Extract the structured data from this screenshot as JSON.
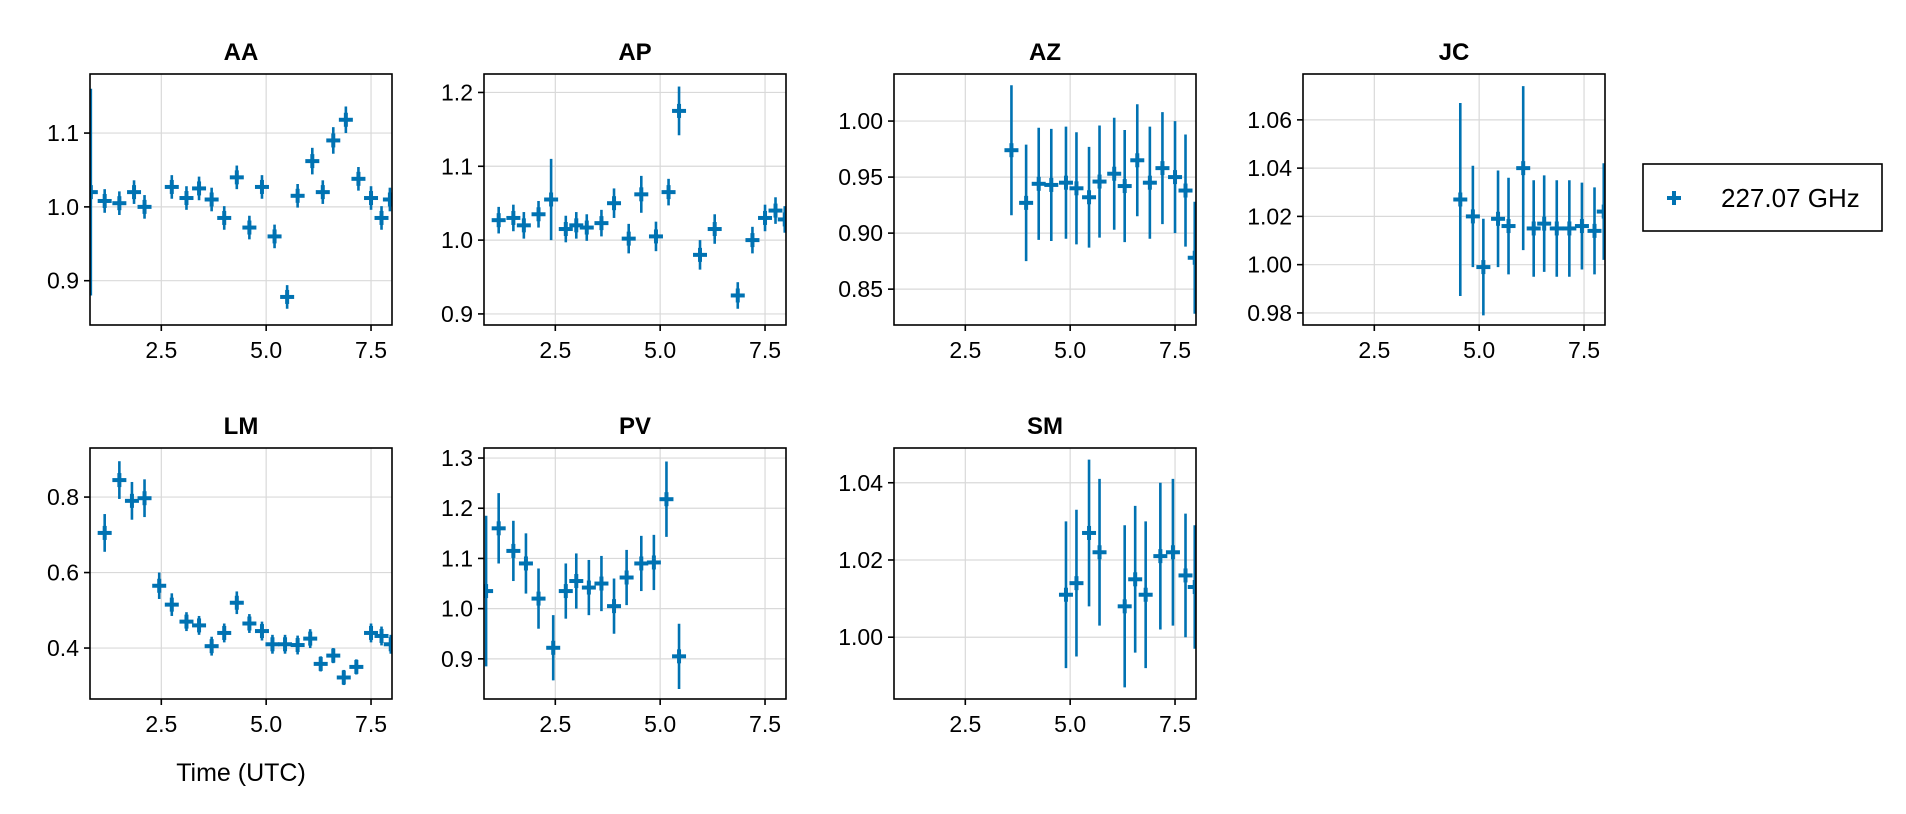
{
  "chart_data": {
    "type": "scatter",
    "layout": "multi-panel grid, 4 columns x 2 rows",
    "series_color": "#0072b2",
    "marker": "plus with vertical error bars",
    "legend": {
      "position": "right",
      "entries": [
        "227.07 GHz"
      ]
    },
    "xlabel": "Time (UTC)",
    "grid": true,
    "panels": [
      {
        "title": "AA",
        "xlim": [
          0.8,
          8.0
        ],
        "ylim": [
          0.84,
          1.18
        ],
        "xticks": [
          "2.5",
          "5.0",
          "7.5"
        ],
        "yticks": [
          "0.9",
          "1.0",
          "1.1"
        ],
        "points": [
          {
            "x": 0.82,
            "y": 1.02,
            "err": 0.14
          },
          {
            "x": 1.15,
            "y": 1.008,
            "err": 0.016
          },
          {
            "x": 1.5,
            "y": 1.005,
            "err": 0.016
          },
          {
            "x": 1.85,
            "y": 1.02,
            "err": 0.016
          },
          {
            "x": 2.1,
            "y": 1.0,
            "err": 0.016
          },
          {
            "x": 2.75,
            "y": 1.027,
            "err": 0.016
          },
          {
            "x": 3.1,
            "y": 1.012,
            "err": 0.016
          },
          {
            "x": 3.4,
            "y": 1.025,
            "err": 0.016
          },
          {
            "x": 3.7,
            "y": 1.01,
            "err": 0.016
          },
          {
            "x": 4.0,
            "y": 0.985,
            "err": 0.016
          },
          {
            "x": 4.3,
            "y": 1.04,
            "err": 0.016
          },
          {
            "x": 4.6,
            "y": 0.972,
            "err": 0.016
          },
          {
            "x": 4.9,
            "y": 1.027,
            "err": 0.016
          },
          {
            "x": 5.2,
            "y": 0.96,
            "err": 0.016
          },
          {
            "x": 5.5,
            "y": 0.878,
            "err": 0.016
          },
          {
            "x": 5.75,
            "y": 1.015,
            "err": 0.016
          },
          {
            "x": 6.1,
            "y": 1.062,
            "err": 0.018
          },
          {
            "x": 6.35,
            "y": 1.02,
            "err": 0.016
          },
          {
            "x": 6.6,
            "y": 1.09,
            "err": 0.018
          },
          {
            "x": 6.9,
            "y": 1.118,
            "err": 0.018
          },
          {
            "x": 7.2,
            "y": 1.038,
            "err": 0.016
          },
          {
            "x": 7.5,
            "y": 1.012,
            "err": 0.016
          },
          {
            "x": 7.75,
            "y": 0.985,
            "err": 0.016
          },
          {
            "x": 7.95,
            "y": 1.01,
            "err": 0.016
          }
        ]
      },
      {
        "title": "AP",
        "xlim": [
          0.8,
          8.0
        ],
        "ylim": [
          0.885,
          1.225
        ],
        "xticks": [
          "2.5",
          "5.0",
          "7.5"
        ],
        "yticks": [
          "0.9",
          "1.0",
          "1.1",
          "1.2"
        ],
        "points": [
          {
            "x": 1.15,
            "y": 1.027,
            "err": 0.018
          },
          {
            "x": 1.5,
            "y": 1.03,
            "err": 0.018
          },
          {
            "x": 1.75,
            "y": 1.02,
            "err": 0.018
          },
          {
            "x": 2.1,
            "y": 1.035,
            "err": 0.018
          },
          {
            "x": 2.4,
            "y": 1.055,
            "err": 0.055
          },
          {
            "x": 2.75,
            "y": 1.015,
            "err": 0.018
          },
          {
            "x": 3.0,
            "y": 1.02,
            "err": 0.018
          },
          {
            "x": 3.25,
            "y": 1.017,
            "err": 0.018
          },
          {
            "x": 3.6,
            "y": 1.023,
            "err": 0.018
          },
          {
            "x": 3.9,
            "y": 1.05,
            "err": 0.02
          },
          {
            "x": 4.25,
            "y": 1.002,
            "err": 0.02
          },
          {
            "x": 4.55,
            "y": 1.062,
            "err": 0.025
          },
          {
            "x": 4.9,
            "y": 1.005,
            "err": 0.02
          },
          {
            "x": 5.2,
            "y": 1.065,
            "err": 0.018
          },
          {
            "x": 5.45,
            "y": 1.175,
            "err": 0.033
          },
          {
            "x": 5.95,
            "y": 0.98,
            "err": 0.02
          },
          {
            "x": 6.3,
            "y": 1.015,
            "err": 0.02
          },
          {
            "x": 6.85,
            "y": 0.925,
            "err": 0.018
          },
          {
            "x": 7.2,
            "y": 1.0,
            "err": 0.018
          },
          {
            "x": 7.5,
            "y": 1.03,
            "err": 0.018
          },
          {
            "x": 7.75,
            "y": 1.04,
            "err": 0.018
          },
          {
            "x": 7.97,
            "y": 1.028,
            "err": 0.018
          }
        ]
      },
      {
        "title": "AZ",
        "xlim": [
          0.8,
          8.0
        ],
        "ylim": [
          0.818,
          1.042
        ],
        "xticks": [
          "2.5",
          "5.0",
          "7.5"
        ],
        "yticks": [
          "0.85",
          "0.90",
          "0.95",
          "1.00"
        ],
        "points": [
          {
            "x": 3.6,
            "y": 0.974,
            "err": 0.058
          },
          {
            "x": 3.95,
            "y": 0.927,
            "err": 0.052
          },
          {
            "x": 4.25,
            "y": 0.944,
            "err": 0.05
          },
          {
            "x": 4.55,
            "y": 0.943,
            "err": 0.05
          },
          {
            "x": 4.9,
            "y": 0.945,
            "err": 0.05
          },
          {
            "x": 5.15,
            "y": 0.94,
            "err": 0.05
          },
          {
            "x": 5.45,
            "y": 0.932,
            "err": 0.045
          },
          {
            "x": 5.7,
            "y": 0.946,
            "err": 0.05
          },
          {
            "x": 6.05,
            "y": 0.953,
            "err": 0.05
          },
          {
            "x": 6.3,
            "y": 0.942,
            "err": 0.05
          },
          {
            "x": 6.6,
            "y": 0.965,
            "err": 0.05
          },
          {
            "x": 6.9,
            "y": 0.945,
            "err": 0.05
          },
          {
            "x": 7.2,
            "y": 0.958,
            "err": 0.05
          },
          {
            "x": 7.5,
            "y": 0.95,
            "err": 0.05
          },
          {
            "x": 7.75,
            "y": 0.938,
            "err": 0.05
          },
          {
            "x": 7.97,
            "y": 0.878,
            "err": 0.05
          }
        ]
      },
      {
        "title": "JC",
        "xlim": [
          0.8,
          8.0
        ],
        "ylim": [
          0.975,
          1.079
        ],
        "xticks": [
          "2.5",
          "5.0",
          "7.5"
        ],
        "yticks": [
          "0.98",
          "1.00",
          "1.02",
          "1.04",
          "1.06"
        ],
        "points": [
          {
            "x": 4.55,
            "y": 1.027,
            "err": 0.04
          },
          {
            "x": 4.85,
            "y": 1.02,
            "err": 0.021
          },
          {
            "x": 5.1,
            "y": 0.999,
            "err": 0.02
          },
          {
            "x": 5.45,
            "y": 1.019,
            "err": 0.02
          },
          {
            "x": 5.7,
            "y": 1.016,
            "err": 0.02
          },
          {
            "x": 6.05,
            "y": 1.04,
            "err": 0.034
          },
          {
            "x": 6.3,
            "y": 1.015,
            "err": 0.02
          },
          {
            "x": 6.55,
            "y": 1.017,
            "err": 0.02
          },
          {
            "x": 6.85,
            "y": 1.015,
            "err": 0.02
          },
          {
            "x": 7.15,
            "y": 1.015,
            "err": 0.02
          },
          {
            "x": 7.45,
            "y": 1.016,
            "err": 0.018
          },
          {
            "x": 7.75,
            "y": 1.014,
            "err": 0.018
          },
          {
            "x": 7.97,
            "y": 1.022,
            "err": 0.02
          }
        ]
      },
      {
        "title": "LM",
        "xlim": [
          0.8,
          8.0
        ],
        "ylim": [
          0.265,
          0.93
        ],
        "xticks": [
          "2.5",
          "5.0",
          "7.5"
        ],
        "yticks": [
          "0.4",
          "0.6",
          "0.8"
        ],
        "points": [
          {
            "x": 1.15,
            "y": 0.705,
            "err": 0.05
          },
          {
            "x": 1.5,
            "y": 0.845,
            "err": 0.05
          },
          {
            "x": 1.8,
            "y": 0.79,
            "err": 0.05
          },
          {
            "x": 2.1,
            "y": 0.797,
            "err": 0.05
          },
          {
            "x": 2.45,
            "y": 0.565,
            "err": 0.035
          },
          {
            "x": 2.75,
            "y": 0.515,
            "err": 0.03
          },
          {
            "x": 3.1,
            "y": 0.47,
            "err": 0.025
          },
          {
            "x": 3.4,
            "y": 0.46,
            "err": 0.025
          },
          {
            "x": 3.7,
            "y": 0.405,
            "err": 0.025
          },
          {
            "x": 4.0,
            "y": 0.44,
            "err": 0.025
          },
          {
            "x": 4.3,
            "y": 0.52,
            "err": 0.03
          },
          {
            "x": 4.6,
            "y": 0.465,
            "err": 0.025
          },
          {
            "x": 4.9,
            "y": 0.445,
            "err": 0.025
          },
          {
            "x": 5.15,
            "y": 0.41,
            "err": 0.025
          },
          {
            "x": 5.45,
            "y": 0.41,
            "err": 0.025
          },
          {
            "x": 5.75,
            "y": 0.408,
            "err": 0.025
          },
          {
            "x": 6.05,
            "y": 0.425,
            "err": 0.025
          },
          {
            "x": 6.3,
            "y": 0.358,
            "err": 0.02
          },
          {
            "x": 6.6,
            "y": 0.38,
            "err": 0.02
          },
          {
            "x": 6.85,
            "y": 0.322,
            "err": 0.02
          },
          {
            "x": 7.15,
            "y": 0.35,
            "err": 0.02
          },
          {
            "x": 7.5,
            "y": 0.44,
            "err": 0.025
          },
          {
            "x": 7.75,
            "y": 0.432,
            "err": 0.025
          },
          {
            "x": 7.97,
            "y": 0.41,
            "err": 0.025
          }
        ]
      },
      {
        "title": "PV",
        "xlim": [
          0.8,
          8.0
        ],
        "ylim": [
          0.82,
          1.32
        ],
        "xticks": [
          "2.5",
          "5.0",
          "7.5"
        ],
        "yticks": [
          "0.9",
          "1.0",
          "1.1",
          "1.2",
          "1.3"
        ],
        "points": [
          {
            "x": 0.85,
            "y": 1.035,
            "err": 0.15
          },
          {
            "x": 1.15,
            "y": 1.16,
            "err": 0.07
          },
          {
            "x": 1.5,
            "y": 1.115,
            "err": 0.06
          },
          {
            "x": 1.8,
            "y": 1.09,
            "err": 0.06
          },
          {
            "x": 2.1,
            "y": 1.02,
            "err": 0.06
          },
          {
            "x": 2.45,
            "y": 0.922,
            "err": 0.065
          },
          {
            "x": 2.75,
            "y": 1.035,
            "err": 0.055
          },
          {
            "x": 3.0,
            "y": 1.055,
            "err": 0.055
          },
          {
            "x": 3.3,
            "y": 1.042,
            "err": 0.055
          },
          {
            "x": 3.6,
            "y": 1.05,
            "err": 0.055
          },
          {
            "x": 3.9,
            "y": 1.005,
            "err": 0.055
          },
          {
            "x": 4.2,
            "y": 1.062,
            "err": 0.055
          },
          {
            "x": 4.55,
            "y": 1.09,
            "err": 0.055
          },
          {
            "x": 4.85,
            "y": 1.092,
            "err": 0.055
          },
          {
            "x": 5.15,
            "y": 1.218,
            "err": 0.075
          },
          {
            "x": 5.45,
            "y": 0.905,
            "err": 0.065
          }
        ]
      },
      {
        "title": "SM",
        "xlim": [
          0.8,
          8.0
        ],
        "ylim": [
          0.984,
          1.049
        ],
        "xticks": [
          "2.5",
          "5.0",
          "7.5"
        ],
        "yticks": [
          "1.00",
          "1.02",
          "1.04"
        ],
        "points": [
          {
            "x": 4.9,
            "y": 1.011,
            "err": 0.019
          },
          {
            "x": 5.15,
            "y": 1.014,
            "err": 0.019
          },
          {
            "x": 5.45,
            "y": 1.027,
            "err": 0.019
          },
          {
            "x": 5.7,
            "y": 1.022,
            "err": 0.019
          },
          {
            "x": 6.3,
            "y": 1.008,
            "err": 0.021
          },
          {
            "x": 6.55,
            "y": 1.015,
            "err": 0.019
          },
          {
            "x": 6.8,
            "y": 1.011,
            "err": 0.019
          },
          {
            "x": 7.15,
            "y": 1.021,
            "err": 0.019
          },
          {
            "x": 7.45,
            "y": 1.022,
            "err": 0.019
          },
          {
            "x": 7.75,
            "y": 1.016,
            "err": 0.016
          },
          {
            "x": 7.97,
            "y": 1.013,
            "err": 0.016
          }
        ]
      }
    ]
  }
}
